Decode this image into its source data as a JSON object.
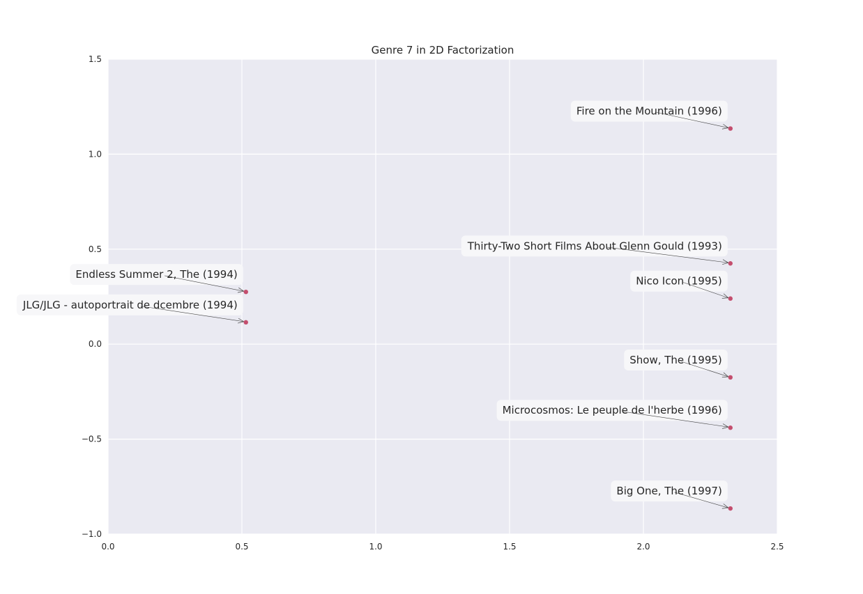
{
  "chart_data": {
    "type": "scatter",
    "title": "Genre 7 in 2D Factorization",
    "xlabel": "",
    "ylabel": "",
    "xlim": [
      0.0,
      2.5
    ],
    "ylim": [
      -1.0,
      1.5
    ],
    "xticks": [
      "0.0",
      "0.5",
      "1.0",
      "1.5",
      "2.0",
      "2.5"
    ],
    "yticks": [
      "1.5",
      "1.0",
      "0.5",
      "0.0",
      "−0.5",
      "−1.0"
    ],
    "grid": true,
    "legend": false,
    "colors": {
      "background": "#eaeaf2",
      "grid": "#ffffff",
      "point": "#c44e6e",
      "label_box": "#f7f7f9",
      "arrow": "#444444"
    },
    "points": [
      {
        "label": "Fire on the Mountain (1996)",
        "x": 2.325,
        "y": 1.135
      },
      {
        "label": "Thirty-Two Short Films About Glenn Gould (1993)",
        "x": 2.325,
        "y": 0.425
      },
      {
        "label": "Nico Icon (1995)",
        "x": 2.325,
        "y": 0.24
      },
      {
        "label": "Endless Summer 2, The (1994)",
        "x": 0.515,
        "y": 0.275
      },
      {
        "label": "JLG/JLG - autoportrait de dcembre (1994)",
        "x": 0.515,
        "y": 0.115
      },
      {
        "label": "Show, The (1995)",
        "x": 2.325,
        "y": -0.175
      },
      {
        "label": "Microcosmos: Le peuple de l'herbe (1996)",
        "x": 2.325,
        "y": -0.44
      },
      {
        "label": "Big One, The (1997)",
        "x": 2.325,
        "y": -0.865
      }
    ]
  }
}
